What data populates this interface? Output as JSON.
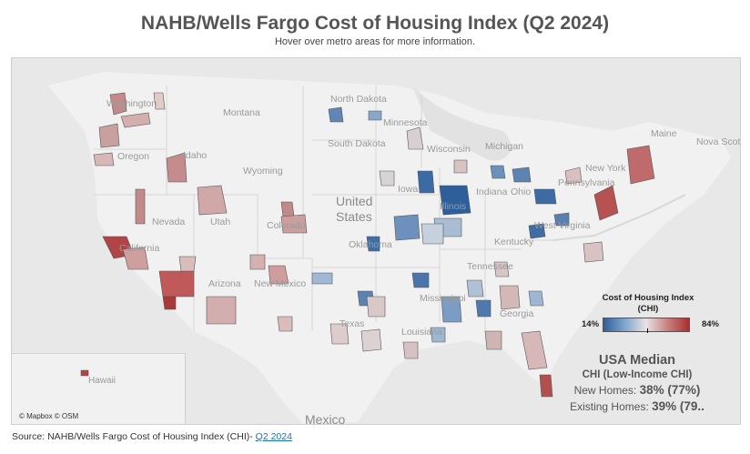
{
  "header": {
    "title": "NAHB/Wells Fargo Cost of Housing Index (Q2 2024)",
    "subtitle": "Hover over metro areas for more information."
  },
  "map": {
    "state_labels": [
      "Washington",
      "Montana",
      "North Dakota",
      "Minnesota",
      "Oregon",
      "Idaho",
      "Wyoming",
      "South Dakota",
      "Wisconsin",
      "Iowa",
      "Nevada",
      "Utah",
      "Colorado",
      "California",
      "Arizona",
      "New Mexico",
      "Oklahoma",
      "Texas",
      "Mississippi",
      "Georgia",
      "Louisiana",
      "Tennessee",
      "Kentucky",
      "West Virginia",
      "Ohio",
      "Pennsylvania",
      "New York",
      "Michigan",
      "Illinois",
      "Indiana",
      "Maine"
    ],
    "country_labels": [
      "United",
      "States",
      "Mexico"
    ],
    "region_labels": [
      "Nova Scot"
    ],
    "hawaii_label": "Hawaii",
    "attribution": "© Mapbox © OSM"
  },
  "legend": {
    "title_line1": "Cost of Housing Index",
    "title_line2": "(CHI)",
    "min_label": "14%",
    "max_label": "84%",
    "colors": {
      "low": "#2f5f9a",
      "mid": "#e9e2e2",
      "high": "#a82f2f"
    }
  },
  "median": {
    "title": "USA Median",
    "subtitle": "CHI (Low-Income CHI)",
    "new_label": "New Homes:",
    "new_value": "38% (77%)",
    "existing_label": "Existing Homes:",
    "existing_value": "39% (79.."
  },
  "source": {
    "text": "Source: NAHB/Wells Fargo Cost of Housing Index (CHI)- ",
    "link": "Q2 2024"
  }
}
